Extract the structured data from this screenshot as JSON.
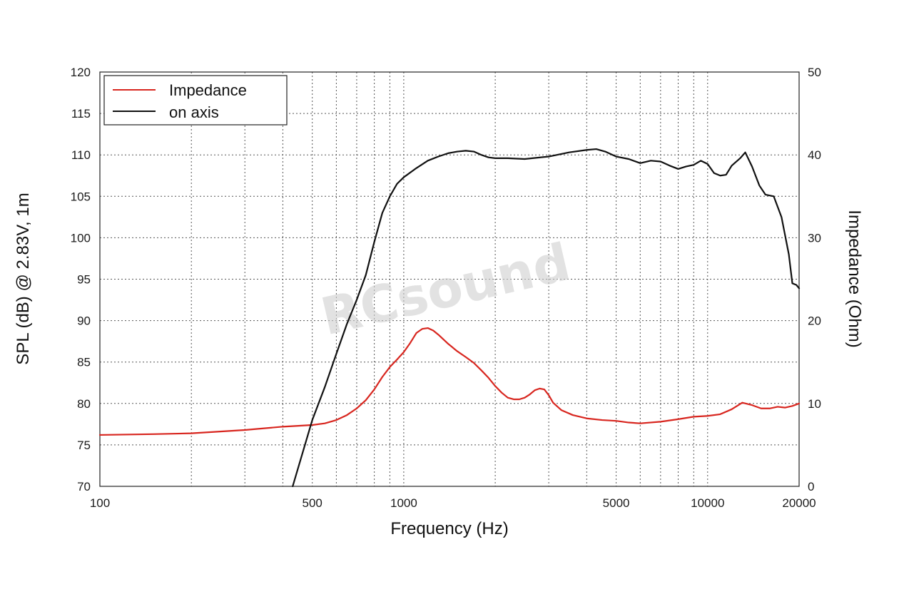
{
  "chart_data": {
    "type": "line",
    "xlabel": "Frequency (Hz)",
    "ylabel_left": "SPL (dB) @ 2.83V, 1m",
    "ylabel_right": "Impedance (Ohm)",
    "x_scale": "log",
    "xlim": [
      100,
      20000
    ],
    "ylim_left": [
      70,
      120
    ],
    "ylim_right": [
      0,
      50
    ],
    "x_ticks": [
      100,
      500,
      1000,
      5000,
      10000,
      20000
    ],
    "x_tick_labels": [
      "100",
      "500",
      "1000",
      "5000",
      "10000",
      "20000"
    ],
    "y_left_ticks": [
      70,
      75,
      80,
      85,
      90,
      95,
      100,
      105,
      110,
      115,
      120
    ],
    "y_left_tick_labels": [
      "70",
      "75",
      "80",
      "85",
      "90",
      "95",
      "100",
      "105",
      "110",
      "115",
      "120"
    ],
    "y_right_ticks": [
      0,
      10,
      20,
      30,
      40,
      50
    ],
    "y_right_tick_labels": [
      "0",
      "10",
      "20",
      "30",
      "40",
      "50"
    ],
    "grid": true,
    "legend_position": "top-left",
    "watermark": "RCsound",
    "series": [
      {
        "name": "Impedance",
        "axis": "right",
        "color": "#d8261f",
        "points": [
          [
            100,
            6.2
          ],
          [
            150,
            6.3
          ],
          [
            200,
            6.4
          ],
          [
            300,
            6.8
          ],
          [
            400,
            7.2
          ],
          [
            500,
            7.4
          ],
          [
            550,
            7.6
          ],
          [
            600,
            8.0
          ],
          [
            650,
            8.6
          ],
          [
            700,
            9.4
          ],
          [
            750,
            10.4
          ],
          [
            800,
            11.7
          ],
          [
            850,
            13.2
          ],
          [
            900,
            14.4
          ],
          [
            950,
            15.3
          ],
          [
            1000,
            16.2
          ],
          [
            1050,
            17.3
          ],
          [
            1100,
            18.5
          ],
          [
            1150,
            19.0
          ],
          [
            1200,
            19.1
          ],
          [
            1250,
            18.8
          ],
          [
            1300,
            18.3
          ],
          [
            1400,
            17.2
          ],
          [
            1500,
            16.3
          ],
          [
            1600,
            15.6
          ],
          [
            1700,
            14.9
          ],
          [
            1800,
            14.0
          ],
          [
            1900,
            13.1
          ],
          [
            2000,
            12.1
          ],
          [
            2100,
            11.3
          ],
          [
            2200,
            10.7
          ],
          [
            2300,
            10.5
          ],
          [
            2400,
            10.5
          ],
          [
            2500,
            10.7
          ],
          [
            2600,
            11.1
          ],
          [
            2700,
            11.6
          ],
          [
            2800,
            11.8
          ],
          [
            2900,
            11.7
          ],
          [
            3000,
            11.0
          ],
          [
            3100,
            10.1
          ],
          [
            3300,
            9.2
          ],
          [
            3600,
            8.6
          ],
          [
            4000,
            8.2
          ],
          [
            4500,
            8.0
          ],
          [
            5000,
            7.9
          ],
          [
            5500,
            7.7
          ],
          [
            6000,
            7.6
          ],
          [
            7000,
            7.8
          ],
          [
            8000,
            8.1
          ],
          [
            9000,
            8.4
          ],
          [
            10000,
            8.5
          ],
          [
            11000,
            8.7
          ],
          [
            12000,
            9.3
          ],
          [
            13000,
            10.1
          ],
          [
            14000,
            9.8
          ],
          [
            15000,
            9.4
          ],
          [
            16000,
            9.4
          ],
          [
            17000,
            9.6
          ],
          [
            18000,
            9.5
          ],
          [
            19000,
            9.7
          ],
          [
            20000,
            10.0
          ]
        ]
      },
      {
        "name": "on axis",
        "axis": "left",
        "color": "#111111",
        "points": [
          [
            431,
            70.0
          ],
          [
            500,
            78.0
          ],
          [
            550,
            82.0
          ],
          [
            600,
            86.0
          ],
          [
            650,
            89.6
          ],
          [
            700,
            92.5
          ],
          [
            750,
            95.5
          ],
          [
            800,
            99.5
          ],
          [
            850,
            103.0
          ],
          [
            900,
            105.0
          ],
          [
            950,
            106.5
          ],
          [
            1000,
            107.3
          ],
          [
            1100,
            108.4
          ],
          [
            1200,
            109.3
          ],
          [
            1300,
            109.8
          ],
          [
            1400,
            110.2
          ],
          [
            1500,
            110.4
          ],
          [
            1600,
            110.5
          ],
          [
            1700,
            110.4
          ],
          [
            1800,
            110.0
          ],
          [
            1900,
            109.7
          ],
          [
            2000,
            109.6
          ],
          [
            2200,
            109.6
          ],
          [
            2500,
            109.5
          ],
          [
            3000,
            109.8
          ],
          [
            3500,
            110.3
          ],
          [
            4000,
            110.6
          ],
          [
            4300,
            110.7
          ],
          [
            4600,
            110.4
          ],
          [
            5000,
            109.8
          ],
          [
            5500,
            109.5
          ],
          [
            6000,
            109.0
          ],
          [
            6500,
            109.3
          ],
          [
            7000,
            109.2
          ],
          [
            7500,
            108.7
          ],
          [
            8000,
            108.3
          ],
          [
            8500,
            108.6
          ],
          [
            9000,
            108.8
          ],
          [
            9500,
            109.3
          ],
          [
            10000,
            108.9
          ],
          [
            10500,
            107.8
          ],
          [
            11000,
            107.5
          ],
          [
            11500,
            107.6
          ],
          [
            12000,
            108.7
          ],
          [
            12800,
            109.6
          ],
          [
            13300,
            110.3
          ],
          [
            14000,
            108.6
          ],
          [
            14800,
            106.3
          ],
          [
            15500,
            105.2
          ],
          [
            16500,
            105.0
          ],
          [
            17500,
            102.5
          ],
          [
            18500,
            98.0
          ],
          [
            19000,
            94.5
          ],
          [
            19600,
            94.3
          ],
          [
            20000,
            93.9
          ]
        ]
      }
    ]
  }
}
